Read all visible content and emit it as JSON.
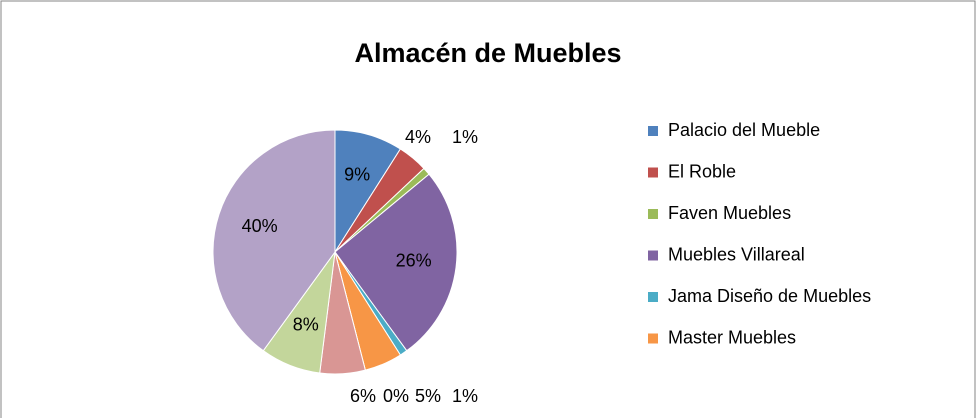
{
  "chart_data": {
    "type": "pie",
    "title": "Almacén de Muebles",
    "categories": [
      "Palacio del Mueble",
      "El Roble",
      "Faven Muebles",
      "Muebles Villareal",
      "Jama Diseño de Muebles",
      "Master Muebles",
      null,
      null,
      null,
      null
    ],
    "values": [
      9,
      4,
      1,
      26,
      1,
      5,
      0,
      6,
      8,
      40
    ],
    "value_labels": [
      "9%",
      "4%",
      "1%",
      "26%",
      "1%",
      "5%",
      "0%",
      "6%",
      "8%",
      "40%"
    ],
    "colors": [
      "#4f81bd",
      "#c0504d",
      "#9bbb59",
      "#8064a2",
      "#4bacc6",
      "#f79646",
      "#2c4d75",
      "#d99694",
      "#c3d69b",
      "#b3a2c7"
    ],
    "legend": "right"
  }
}
